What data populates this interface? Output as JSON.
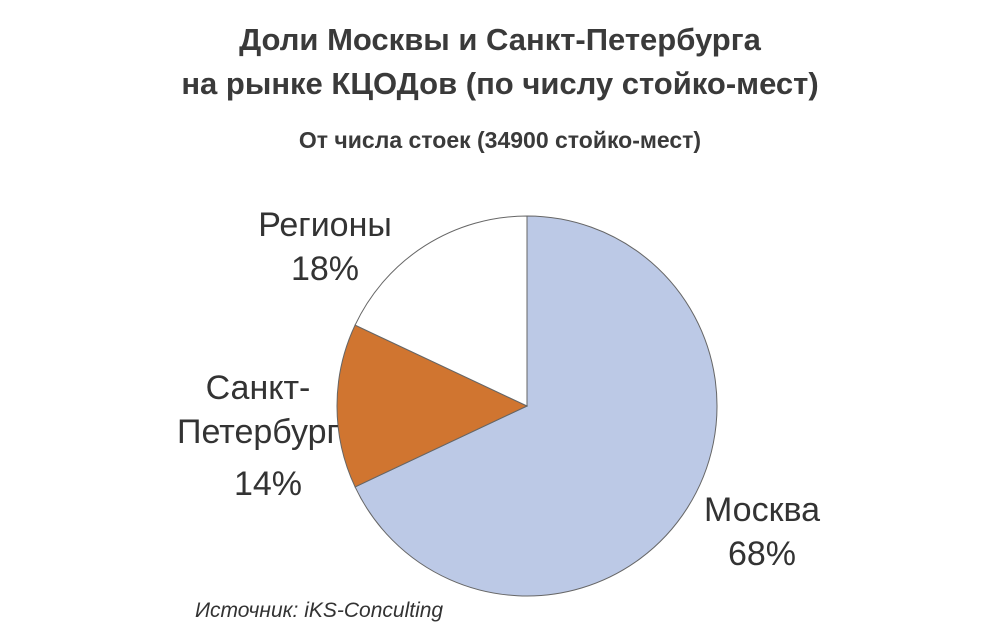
{
  "chart_data": {
    "type": "pie",
    "title": [
      "Доли Москвы и Санкт-Петербурга",
      "на рынке КЦОДов (по числу стойко-мест)"
    ],
    "subtitle": "От числа стоек (34900 стойко-мест)",
    "categories": [
      "Москва",
      "Санкт-Петербург",
      "Регионы"
    ],
    "values": [
      68,
      14,
      18
    ],
    "value_labels": [
      "68%",
      "14%",
      "18%"
    ],
    "colors": [
      "#bcc9e6",
      "#d07530",
      "#ffffff"
    ],
    "source": "Источник: iKS-Conculting"
  }
}
